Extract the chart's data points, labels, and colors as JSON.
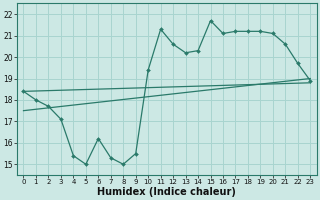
{
  "title": "",
  "xlabel": "Humidex (Indice chaleur)",
  "ylabel": "",
  "background_color": "#cce8e4",
  "grid_color": "#a8d4cf",
  "line_color": "#2a7a6a",
  "x_data": [
    0,
    1,
    2,
    3,
    4,
    5,
    6,
    7,
    8,
    9,
    10,
    11,
    12,
    13,
    14,
    15,
    16,
    17,
    18,
    19,
    20,
    21,
    22,
    23
  ],
  "y_main": [
    18.4,
    18.0,
    17.7,
    17.1,
    15.4,
    15.0,
    16.2,
    15.3,
    15.0,
    15.5,
    19.4,
    21.3,
    20.6,
    20.2,
    20.3,
    21.7,
    21.1,
    21.2,
    21.2,
    21.2,
    21.1,
    20.6,
    19.7,
    18.9
  ],
  "xlim": [
    0,
    23
  ],
  "ylim": [
    14.5,
    22.5
  ],
  "yticks": [
    15,
    16,
    17,
    18,
    19,
    20,
    21,
    22
  ],
  "xticks": [
    0,
    1,
    2,
    3,
    4,
    5,
    6,
    7,
    8,
    9,
    10,
    11,
    12,
    13,
    14,
    15,
    16,
    17,
    18,
    19,
    20,
    21,
    22,
    23
  ],
  "tick_fontsize": 5.5,
  "xlabel_fontsize": 7
}
